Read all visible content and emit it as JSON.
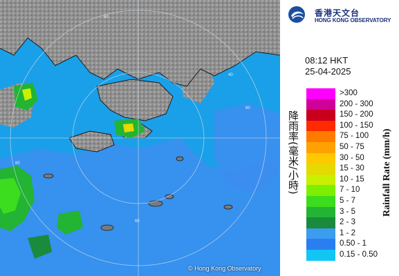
{
  "header": {
    "org_name_zh": "香港天文台",
    "org_name_en": "HONG KONG OBSERVATORY"
  },
  "timestamp": {
    "time": "08:12 HKT",
    "date": "25-04-2025"
  },
  "legend": {
    "title_zh": "降雨率(毫米/小時)",
    "title_en": "Rainfall Rate (mm/h)",
    "items": [
      {
        "label": ">300",
        "color": "#ff00ff"
      },
      {
        "label": "200 - 300",
        "color": "#d0009a"
      },
      {
        "label": "150 - 200",
        "color": "#c8001e"
      },
      {
        "label": "100 - 150",
        "color": "#ff2a00"
      },
      {
        "label": "75 - 100",
        "color": "#ff7b00"
      },
      {
        "label": "50 - 75",
        "color": "#ffa100"
      },
      {
        "label": "30 - 50",
        "color": "#ffc800"
      },
      {
        "label": "15 - 30",
        "color": "#e6d800"
      },
      {
        "label": "10 - 15",
        "color": "#c8f000"
      },
      {
        "label": "7 - 10",
        "color": "#7cf000"
      },
      {
        "label": "5 - 7",
        "color": "#3cdc1e"
      },
      {
        "label": "3 - 5",
        "color": "#22b432"
      },
      {
        "label": "2 - 3",
        "color": "#1a8a3c"
      },
      {
        "label": "1 - 2",
        "color": "#3c9cf0"
      },
      {
        "label": "0.50 - 1",
        "color": "#2a7ef0"
      },
      {
        "label": "0.15 - 0.50",
        "color": "#12c6f4"
      }
    ]
  },
  "map": {
    "range_ring_labels": [
      "60",
      "60",
      "60",
      "60",
      "40"
    ],
    "credit": "© Hong Kong Observatory",
    "colors": {
      "sea": "#1aa0e8",
      "land": "#8a8a8a",
      "rain_light": "#3c8ef0"
    }
  }
}
